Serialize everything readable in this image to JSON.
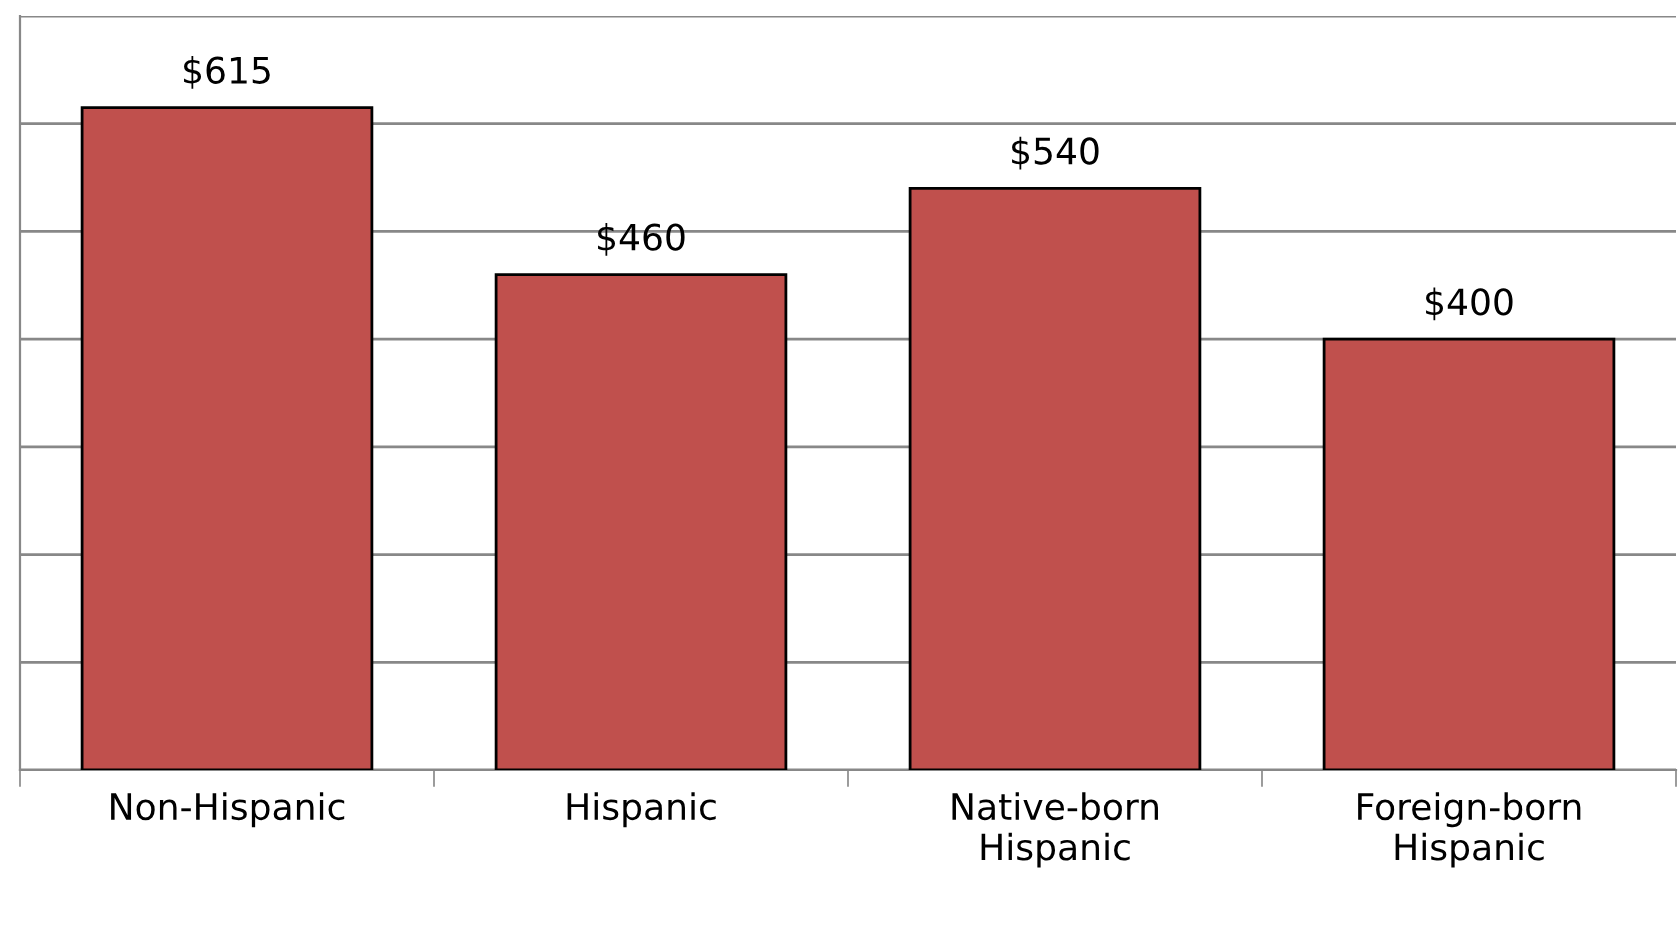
{
  "chart_data": {
    "type": "bar",
    "categories": [
      "Non-Hispanic",
      "Hispanic",
      "Native-born\nHispanic",
      "Foreign-born\nHispanic"
    ],
    "values": [
      615,
      460,
      540,
      400
    ],
    "color": "#c0504d",
    "value_labels": [
      "$615",
      "$460",
      "$540",
      "$400"
    ],
    "ylim": [
      0,
      700
    ],
    "yticks": [
      {
        "value": 0,
        "label": null
      },
      {
        "value": 100,
        "label": null
      },
      {
        "value": 200,
        "label": null
      },
      {
        "value": 300,
        "label": null
      },
      {
        "value": 400,
        "label": null
      },
      {
        "value": 500,
        "label": null
      },
      {
        "value": 600,
        "label": null
      },
      {
        "value": 700,
        "label": null
      }
    ],
    "grid": "y",
    "tick_labels": "x"
  }
}
